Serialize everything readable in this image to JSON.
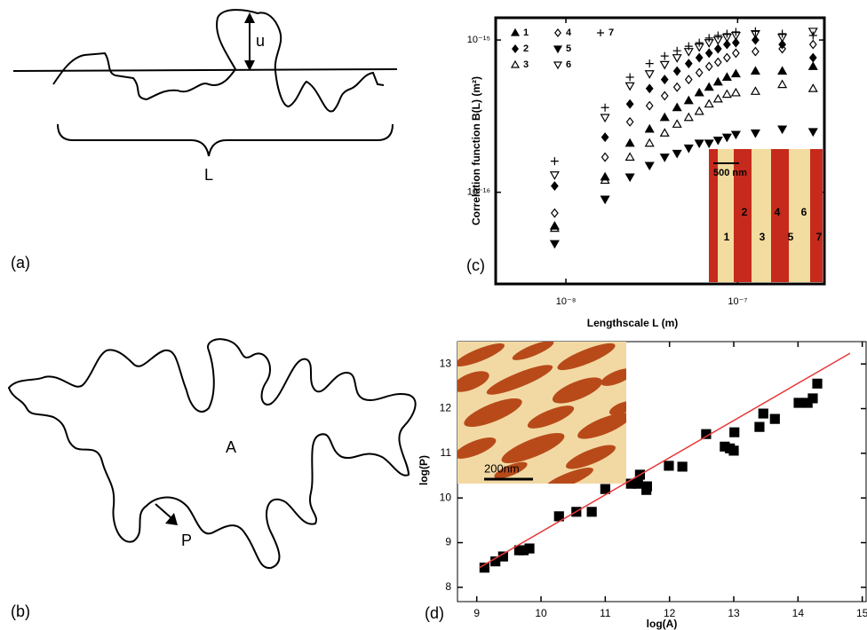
{
  "diagrams": {
    "a": {
      "label": "(a)",
      "height": "u",
      "length": "L"
    },
    "b": {
      "label": "(b)",
      "area": "A",
      "perimeter": "P"
    }
  },
  "chart_data": [
    {
      "type": "scatter",
      "panel_label": "(c)",
      "x_label": "Lengthscale L (m)",
      "y_label": "Correlation function B(L) (m²)",
      "log_x": true,
      "log_y": true,
      "xlim": [
        3.9e-09,
        3.2e-07
      ],
      "ylim": [
        2.5e-17,
        1.4e-15
      ],
      "xticks": [
        {
          "value": 1e-08,
          "label": "10⁻⁸"
        },
        {
          "value": 1e-07,
          "label": "10⁻⁷"
        }
      ],
      "yticks": [
        {
          "value": 1e-16,
          "label": "10⁻¹⁶"
        },
        {
          "value": 1e-15,
          "label": "10⁻¹⁵"
        }
      ],
      "x": [
        8.6e-09,
        1.69e-08,
        2.36e-08,
        3.07e-08,
        3.76e-08,
        4.44e-08,
        5.19e-08,
        5.98e-08,
        6.82e-08,
        7.69e-08,
        8.67e-08,
        9.77e-08,
        1.27e-07,
        1.82e-07,
        2.75e-07
      ],
      "series": [
        {
          "name": "1",
          "marker": "triangle-up",
          "filled": true,
          "color": "#000000",
          "values": [
            6e-17,
            1.26e-16,
            2.1e-16,
            2.6e-16,
            3.1e-16,
            3.6e-16,
            4e-16,
            4.5e-16,
            4.9e-16,
            5.3e-16,
            5.7e-16,
            6e-16,
            6.25e-16,
            6.25e-16,
            6.7e-16
          ]
        },
        {
          "name": "2",
          "marker": "diamond",
          "filled": true,
          "color": "#000000",
          "values": [
            1.1e-16,
            2.3e-16,
            3.8e-16,
            4.8e-16,
            5.5e-16,
            6.25e-16,
            7e-16,
            7.65e-16,
            8.2e-16,
            8.75e-16,
            9.35e-16,
            9.6e-16,
            1e-15,
            9.35e-16,
            7.65e-16
          ]
        },
        {
          "name": "3",
          "marker": "triangle-up",
          "filled": false,
          "color": "#000000",
          "values": [
            5.8e-17,
            1.2e-16,
            1.7e-16,
            2.1e-16,
            2.45e-16,
            2.8e-16,
            3.1e-16,
            3.4e-16,
            3.8e-16,
            4.1e-16,
            4.4e-16,
            4.5e-16,
            4.6e-16,
            5.1e-16,
            4.8e-16
          ]
        },
        {
          "name": "4",
          "marker": "diamond",
          "filled": false,
          "color": "#000000",
          "values": [
            7.3e-17,
            1.7e-16,
            2.9e-16,
            3.7e-16,
            4.3e-16,
            4.9e-16,
            5.5e-16,
            6.1e-16,
            6.7e-16,
            7.15e-16,
            7.65e-16,
            8.2e-16,
            8.4e-16,
            8.75e-16,
            9.35e-16
          ]
        },
        {
          "name": "5",
          "marker": "triangle-down",
          "filled": true,
          "color": "#000000",
          "values": [
            4.6e-17,
            9e-17,
            1.26e-16,
            1.5e-16,
            1.7e-16,
            1.8e-16,
            1.95e-16,
            2.1e-16,
            2.1e-16,
            2.2e-16,
            2.3e-16,
            2.4e-16,
            2.45e-16,
            2.6e-16,
            2.5e-16
          ]
        },
        {
          "name": "6",
          "marker": "triangle-down",
          "filled": false,
          "color": "#000000",
          "values": [
            1.3e-16,
            3.1e-16,
            5e-16,
            6e-16,
            6.9e-16,
            7.65e-16,
            8.4e-16,
            9e-16,
            9.6e-16,
            1e-15,
            1.04e-15,
            1.07e-15,
            1.1e-15,
            1.04e-15,
            1.14e-15
          ]
        },
        {
          "name": "7",
          "marker": "plus",
          "filled": false,
          "color": "#000000",
          "values": [
            1.6e-16,
            3.6e-16,
            5.7e-16,
            7e-16,
            7.85e-16,
            8.5e-16,
            9.1e-16,
            9.6e-16,
            1.03e-15,
            1.07e-15,
            1.1e-15,
            1.13e-15,
            1.14e-15,
            1.1e-15,
            1.07e-15
          ]
        }
      ],
      "inset": {
        "scale_label": "500 nm",
        "labels": [
          "1",
          "2",
          "3",
          "4",
          "5",
          "6",
          "7"
        ]
      }
    },
    {
      "type": "scatter",
      "panel_label": "(d)",
      "x_label": "log(A)",
      "y_label": "log(P)",
      "xlim": [
        8.7,
        15.06
      ],
      "ylim": [
        7.68,
        13.5
      ],
      "xticks": [
        9,
        10,
        11,
        12,
        13,
        14,
        15
      ],
      "yticks": [
        8,
        9,
        10,
        11,
        12,
        13
      ],
      "series": [
        {
          "type": "scatter",
          "marker": "square",
          "filled": true,
          "color": "#000000",
          "x": [
            9.12,
            9.29,
            9.41,
            9.66,
            9.73,
            9.82,
            10.28,
            10.55,
            10.79,
            11.0,
            11.4,
            11.51,
            11.54,
            11.65,
            11.64,
            11.99,
            12.2,
            12.57,
            12.86,
            12.94,
            13.0,
            13.01,
            13.4,
            13.46,
            13.64,
            14.01,
            14.15,
            14.23,
            14.3
          ],
          "values": [
            8.44,
            8.58,
            8.69,
            8.83,
            8.83,
            8.87,
            9.59,
            9.69,
            9.69,
            10.2,
            10.32,
            10.32,
            10.52,
            10.26,
            10.18,
            10.72,
            10.7,
            11.43,
            11.15,
            11.11,
            11.06,
            11.47,
            11.59,
            11.89,
            11.77,
            12.13,
            12.13,
            12.23,
            12.56
          ]
        },
        {
          "type": "line",
          "color": "#e8393a",
          "x": [
            9.04,
            14.81
          ],
          "values": [
            8.44,
            13.24
          ]
        }
      ],
      "inset": {
        "scale_label": "200nm"
      }
    }
  ]
}
